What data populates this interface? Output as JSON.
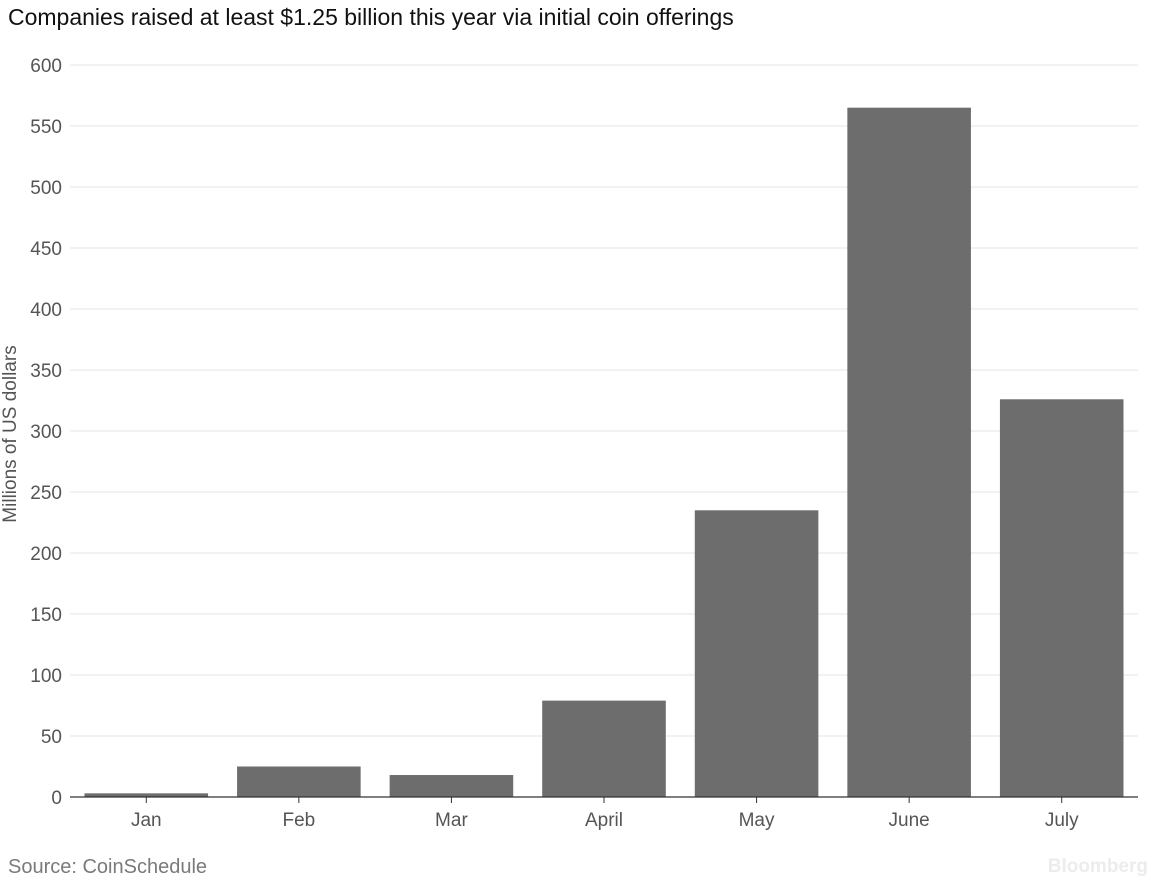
{
  "chart_data": {
    "type": "bar",
    "title": "Companies raised at least $1.25 billion this year via initial coin offerings",
    "xlabel": "",
    "ylabel": "Millions of US dollars",
    "categories": [
      "Jan",
      "Feb",
      "Mar",
      "April",
      "May",
      "June",
      "July"
    ],
    "values": [
      3,
      25,
      18,
      79,
      235,
      565,
      326
    ],
    "ylim": [
      0,
      600
    ],
    "yticks": [
      0,
      50,
      100,
      150,
      200,
      250,
      300,
      350,
      400,
      450,
      500,
      550,
      600
    ],
    "grid": true,
    "bar_color": "#6d6d6d"
  },
  "source": "Source: CoinSchedule",
  "watermark": "Bloomberg"
}
